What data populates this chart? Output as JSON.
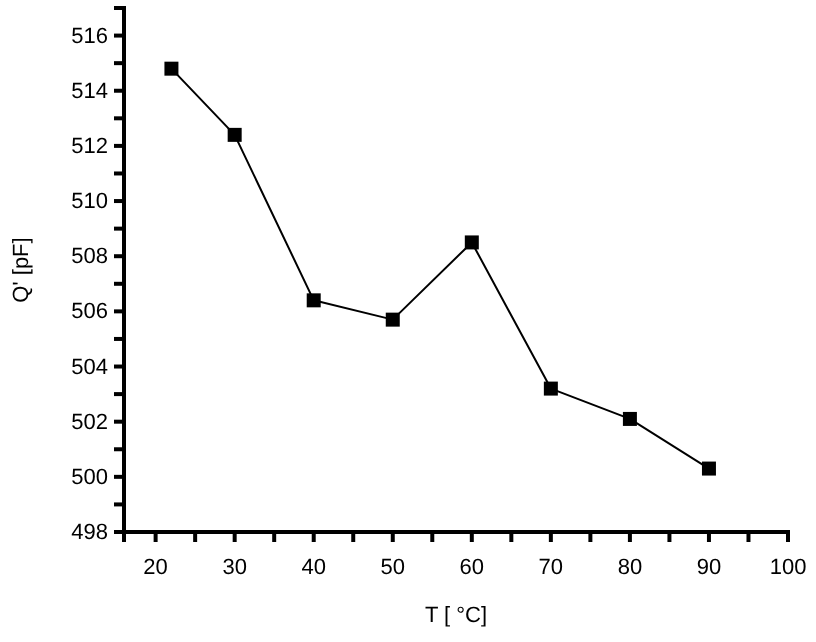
{
  "chart_data": {
    "type": "line",
    "xlabel": "T [ °C]",
    "ylabel": "Q' [pF]",
    "x": [
      22,
      30,
      40,
      50,
      60,
      70,
      80,
      90
    ],
    "series": [
      {
        "color": "#000000",
        "values": [
          514.8,
          512.4,
          506.4,
          505.7,
          508.5,
          503.2,
          502.1,
          500.3
        ]
      }
    ],
    "xlim": [
      16,
      100
    ],
    "xticks": [
      20,
      {
        "value": 25,
        "label": null
      },
      30,
      {
        "value": 35,
        "label": null
      },
      40,
      {
        "value": 45,
        "label": null
      },
      50,
      {
        "value": 55,
        "label": null
      },
      60,
      {
        "value": 65,
        "label": null
      },
      70,
      {
        "value": 75,
        "label": null
      },
      80,
      {
        "value": 85,
        "label": null
      },
      90,
      {
        "value": 95,
        "label": null
      },
      100
    ],
    "ylim": [
      498,
      517
    ],
    "yticks": [
      498,
      {
        "value": 499,
        "label": null
      },
      500,
      {
        "value": 501,
        "label": null
      },
      502,
      {
        "value": 503,
        "label": null
      },
      504,
      {
        "value": 505,
        "label": null
      },
      506,
      {
        "value": 507,
        "label": null
      },
      508,
      {
        "value": 509,
        "label": null
      },
      510,
      {
        "value": 511,
        "label": null
      },
      512,
      {
        "value": 513,
        "label": null
      },
      514,
      {
        "value": 515,
        "label": null
      },
      516
    ],
    "marker": "square",
    "line_style": "solid"
  }
}
